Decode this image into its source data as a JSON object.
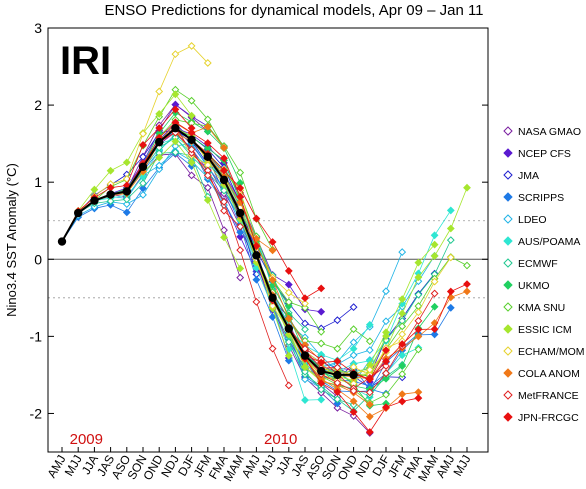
{
  "chart_data": {
    "type": "line",
    "title": "ENSO Predictions for dynamical models, Apr 09 – Jan 11",
    "ylabel": "Nino3.4 SST Anomaly (°C)",
    "xlabel": "",
    "logo": "IRI",
    "ylim": [
      -2.5,
      3
    ],
    "y_ticks": [
      -2,
      -1,
      0,
      1,
      2,
      3
    ],
    "reference_lines": [
      0.5,
      -0.5
    ],
    "categories": [
      "AMJ",
      "MJJ",
      "JJA",
      "JAS",
      "ASO",
      "SON",
      "OND",
      "NDJ",
      "DJF",
      "JFM",
      "FMA",
      "MAM",
      "AMJ",
      "MJJ",
      "JJA",
      "JAS",
      "ASO",
      "SON",
      "OND",
      "NDJ",
      "DJF",
      "JFM",
      "FMA",
      "MAM",
      "AMJ",
      "MJJ"
    ],
    "year_labels": [
      {
        "text": "2009",
        "index": 1.5
      },
      {
        "text": "2010",
        "index": 13.5
      }
    ],
    "legend_position": "right",
    "observed": {
      "color": "#000000",
      "values": [
        0.23,
        0.6,
        0.76,
        0.84,
        0.88,
        1.2,
        1.52,
        1.7,
        1.55,
        1.33,
        1.03,
        0.6,
        0.05,
        -0.5,
        -0.9,
        -1.25,
        -1.45,
        -1.5,
        -1.5,
        null,
        null,
        null,
        null,
        null,
        null,
        null
      ]
    },
    "series": [
      {
        "name": "NASA GMAO",
        "marker": "diamond-open",
        "color": "#7a1fa0",
        "starts": [
          1,
          3,
          5,
          7,
          9,
          11
        ]
      },
      {
        "name": "NCEP CFS",
        "marker": "diamond-filled",
        "color": "#5a1ad0",
        "starts": [
          2,
          4,
          6,
          8,
          10,
          12
        ]
      },
      {
        "name": "JMA",
        "marker": "diamond-open",
        "color": "#2020d0",
        "starts": [
          1,
          4,
          7,
          10,
          13,
          15
        ]
      },
      {
        "name": "SCRIPPS",
        "marker": "diamond-filled",
        "color": "#1e7ae6",
        "starts": [
          0,
          3,
          6,
          9,
          12,
          14,
          16
        ]
      },
      {
        "name": "LDEO",
        "marker": "diamond-open",
        "color": "#20b4e6",
        "starts": [
          0,
          2,
          5,
          8,
          11,
          13,
          15
        ]
      },
      {
        "name": "AUS/POAMA",
        "marker": "diamond-filled",
        "color": "#2ee6d2",
        "starts": [
          2,
          5,
          8,
          11,
          14,
          16
        ]
      },
      {
        "name": "ECMWF",
        "marker": "diamond-open",
        "color": "#20c890",
        "starts": [
          1,
          4,
          7,
          10,
          13,
          16
        ]
      },
      {
        "name": "UKMO",
        "marker": "diamond-filled",
        "color": "#20d060",
        "starts": [
          3,
          6,
          9,
          12,
          15
        ]
      },
      {
        "name": "KMA SNU",
        "marker": "diamond-open",
        "color": "#5ad02e",
        "starts": [
          2,
          5,
          8,
          11,
          14,
          17
        ]
      },
      {
        "name": "ESSIC ICM",
        "marker": "diamond-filled",
        "color": "#a6e62e",
        "starts": [
          0,
          3,
          6,
          9,
          12,
          15,
          18
        ]
      },
      {
        "name": "ECHAM/MOM",
        "marker": "diamond-open",
        "color": "#e6d22e",
        "starts": [
          1,
          4,
          7,
          10,
          13,
          16
        ]
      },
      {
        "name": "COLA ANOM",
        "marker": "diamond-filled",
        "color": "#f07818",
        "starts": [
          2,
          5,
          8,
          11,
          14,
          17
        ]
      },
      {
        "name": "MetFRANCE",
        "marker": "diamond-open",
        "color": "#e02020",
        "starts": [
          3,
          6,
          9,
          12,
          15
        ]
      },
      {
        "name": "JPN-FRCGC",
        "marker": "diamond-filled",
        "color": "#e81010",
        "starts": [
          0,
          4,
          8,
          12,
          14,
          17
        ]
      }
    ]
  }
}
